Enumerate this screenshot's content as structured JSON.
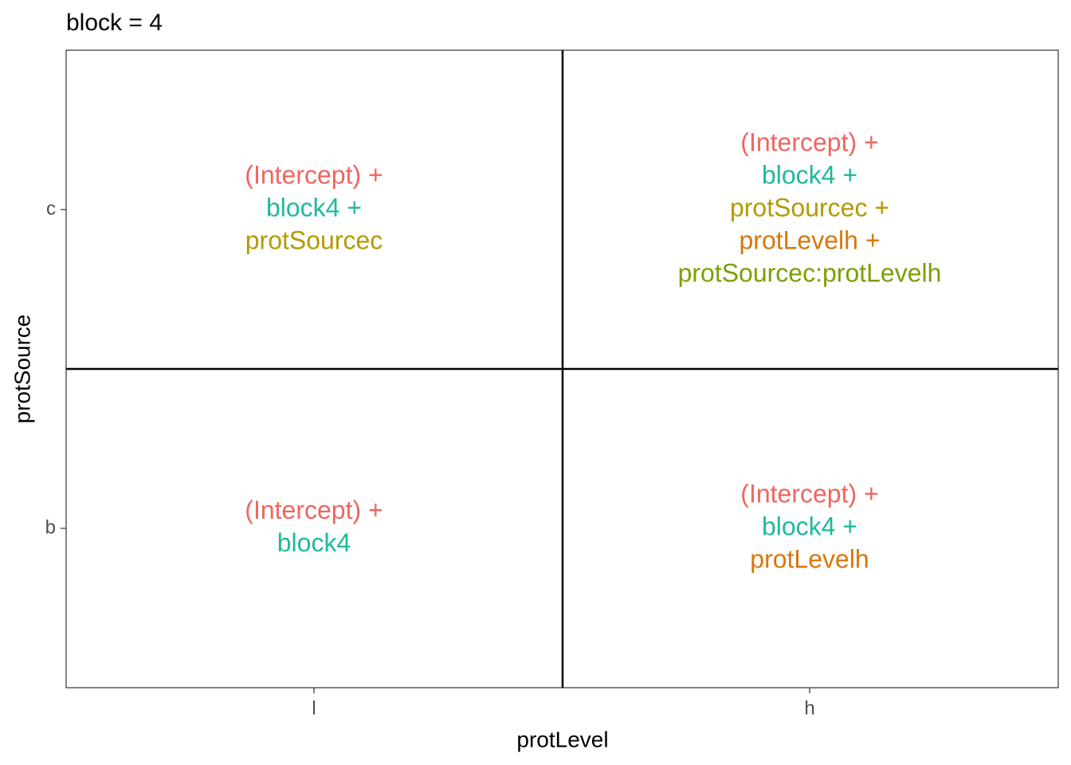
{
  "title": "block = 4",
  "x_axis": {
    "label": "protLevel",
    "categories": [
      "l",
      "h"
    ]
  },
  "y_axis": {
    "label": "protSource",
    "categories": [
      "c",
      "b"
    ]
  },
  "grid": [
    [
      [
        {
          "text": "(Intercept) +",
          "color": "#ee6661"
        },
        {
          "text": "block4 +",
          "color": "#1fb99a"
        },
        {
          "text": "protSourcec",
          "color": "#b39a00"
        }
      ],
      [
        {
          "text": "(Intercept) +",
          "color": "#ee6661"
        },
        {
          "text": "block4 +",
          "color": "#1fb99a"
        },
        {
          "text": "protSourcec +",
          "color": "#b39a00"
        },
        {
          "text": "protLevelh +",
          "color": "#d9760b"
        },
        {
          "text": "protSourcec:protLevelh",
          "color": "#7c9f00"
        }
      ]
    ],
    [
      [
        {
          "text": "(Intercept) +",
          "color": "#ee6661"
        },
        {
          "text": "block4",
          "color": "#1fb99a"
        }
      ],
      [
        {
          "text": "(Intercept) +",
          "color": "#ee6661"
        },
        {
          "text": "block4 +",
          "color": "#1fb99a"
        },
        {
          "text": "protLevelh",
          "color": "#d9760b"
        }
      ]
    ]
  ]
}
